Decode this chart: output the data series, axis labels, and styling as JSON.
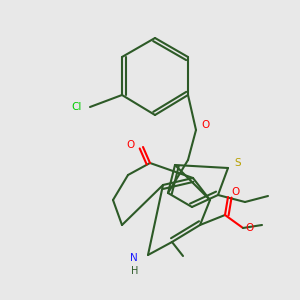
{
  "bg_color": "#e8e8e8",
  "bond_color": "#2d5a27",
  "bond_width": 1.5,
  "heteroatom_colors": {
    "N": "#1a1aff",
    "O": "#ff0000",
    "S": "#b8a000",
    "Cl": "#00cc00"
  }
}
